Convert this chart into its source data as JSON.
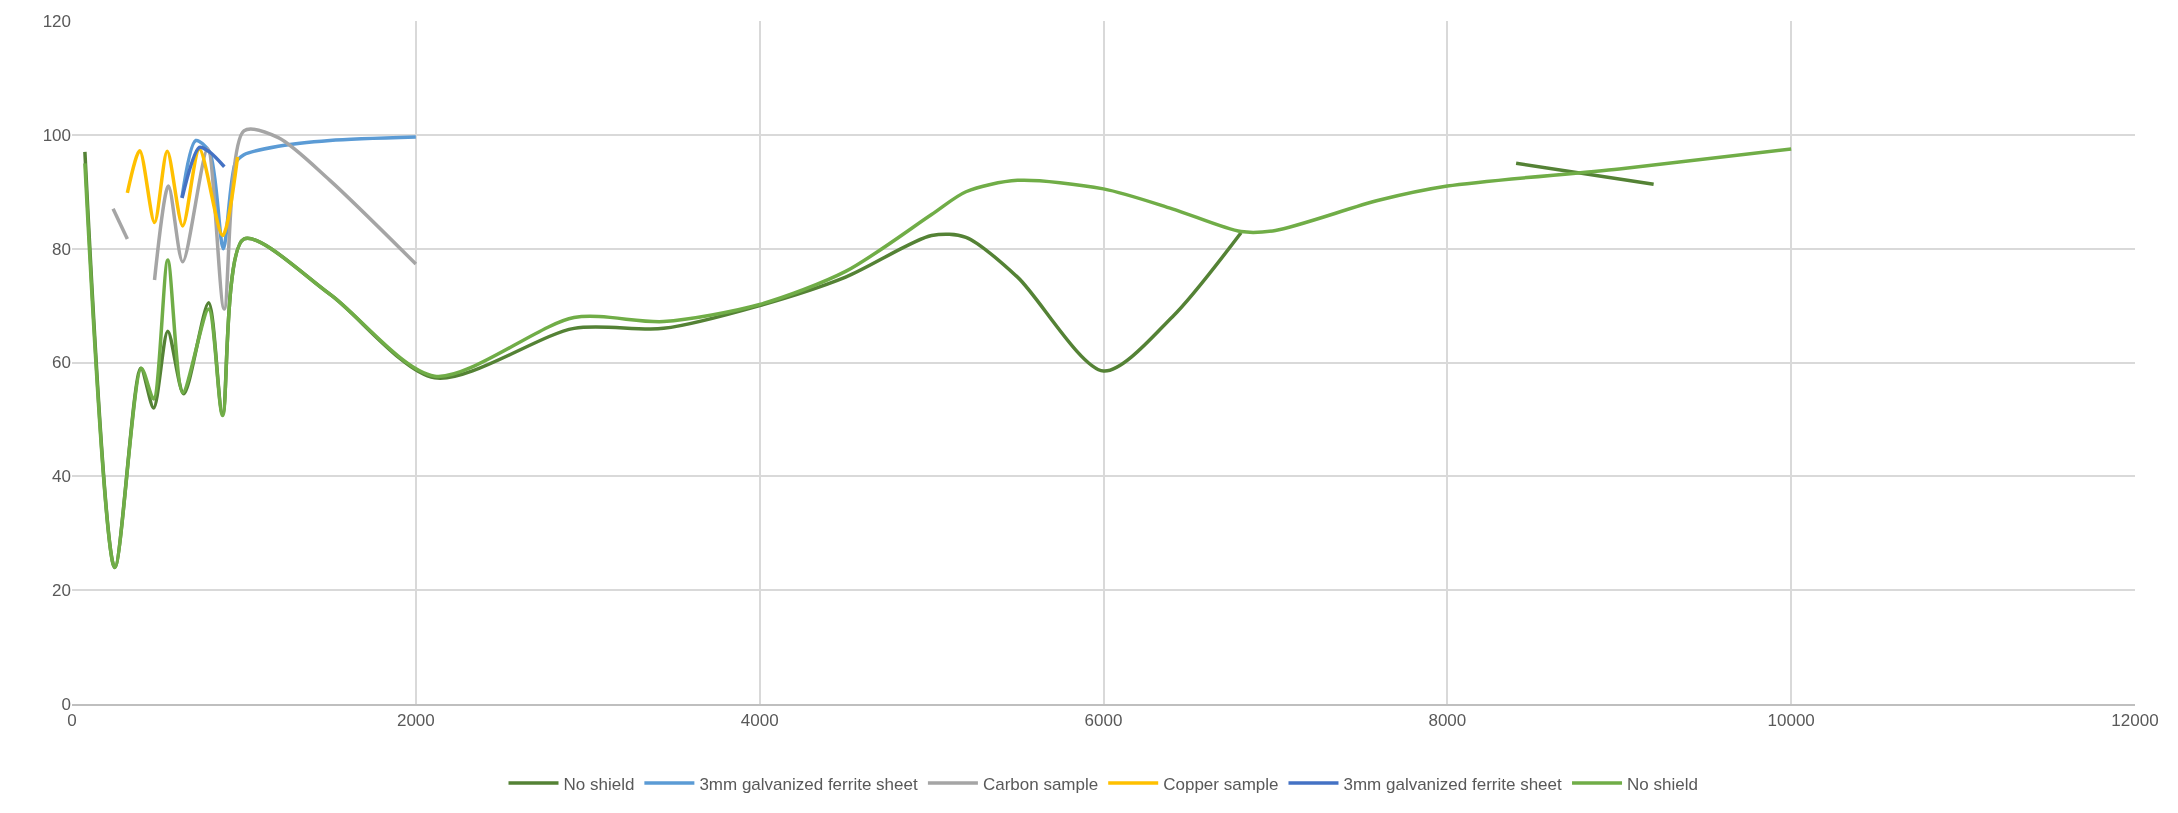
{
  "chart_data": {
    "type": "line",
    "xlim": [
      0,
      12000
    ],
    "xticks": [
      0,
      2000,
      4000,
      6000,
      8000,
      10000,
      12000
    ],
    "ylim": [
      0,
      120
    ],
    "yticks": [
      0,
      20,
      40,
      60,
      80,
      100,
      120
    ],
    "grid": true,
    "legend": "bottom",
    "marker": "none",
    "line_style": "solid",
    "series": [
      {
        "name": "No shield",
        "color": "#548235",
        "x": [
          75,
          249,
          400,
          475,
          557,
          650,
          795,
          876,
          1000,
          1500,
          2110,
          2920,
          3441,
          4000,
          4500,
          5000,
          5200,
          5500,
          6000,
          6400,
          6800,
          7600,
          8400,
          9200
        ],
        "values": [
          97,
          24,
          59,
          52,
          65.5,
          54.5,
          70.5,
          51,
          81.7,
          72,
          57.3,
          66,
          66,
          70,
          75,
          82.3,
          82,
          75,
          58.5,
          68,
          82.8,
          null,
          95,
          91.3
        ]
      },
      {
        "name": "3mm galvanized ferrite sheet",
        "color": "#5b9bd5",
        "x": [
          640,
          720,
          800,
          880,
          950,
          1000,
          1200,
          1500,
          2000
        ],
        "values": [
          89,
          99,
          97,
          80,
          95,
          96.5,
          98,
          99,
          99.6
        ]
      },
      {
        "name": "Carbon sample",
        "color": "#a5a5a5",
        "x": [
          239,
          322,
          400,
          480,
          561,
          644,
          789,
          885,
          1000,
          1200,
          1500,
          2000
        ],
        "values": [
          87,
          81.7,
          null,
          74.5,
          91,
          77.7,
          97.5,
          69.4,
          100.7,
          99.5,
          92,
          77.3
        ]
      },
      {
        "name": "Copper sample",
        "color": "#ffc000",
        "x": [
          322,
          394,
          480,
          554,
          644,
          741,
          876,
          963
        ],
        "values": [
          89.8,
          97.2,
          84.6,
          97.1,
          84,
          97.5,
          82.3,
          96.1
        ]
      },
      {
        "name": "3mm galvanized ferrite sheet",
        "color": "#4472c4",
        "x": [
          640,
          741,
          800,
          886
        ],
        "values": [
          88.9,
          97.8,
          97,
          94.4
        ]
      },
      {
        "name": "No shield",
        "color": "#70ad47",
        "x": [
          75,
          249,
          403,
          475,
          557,
          644,
          795,
          876,
          1000,
          1500,
          2110,
          2920,
          3441,
          4000,
          4500,
          5000,
          5200,
          5500,
          6000,
          6400,
          6800,
          7000,
          7600,
          8000,
          9000,
          10000
        ],
        "values": [
          95,
          24,
          59,
          53.6,
          78,
          54.7,
          69.4,
          50.7,
          81.7,
          72,
          57.6,
          67.9,
          67.2,
          70.2,
          76,
          86,
          90,
          92,
          90.5,
          87,
          83,
          83.2,
          88.5,
          91,
          94,
          97.5
        ]
      }
    ]
  }
}
